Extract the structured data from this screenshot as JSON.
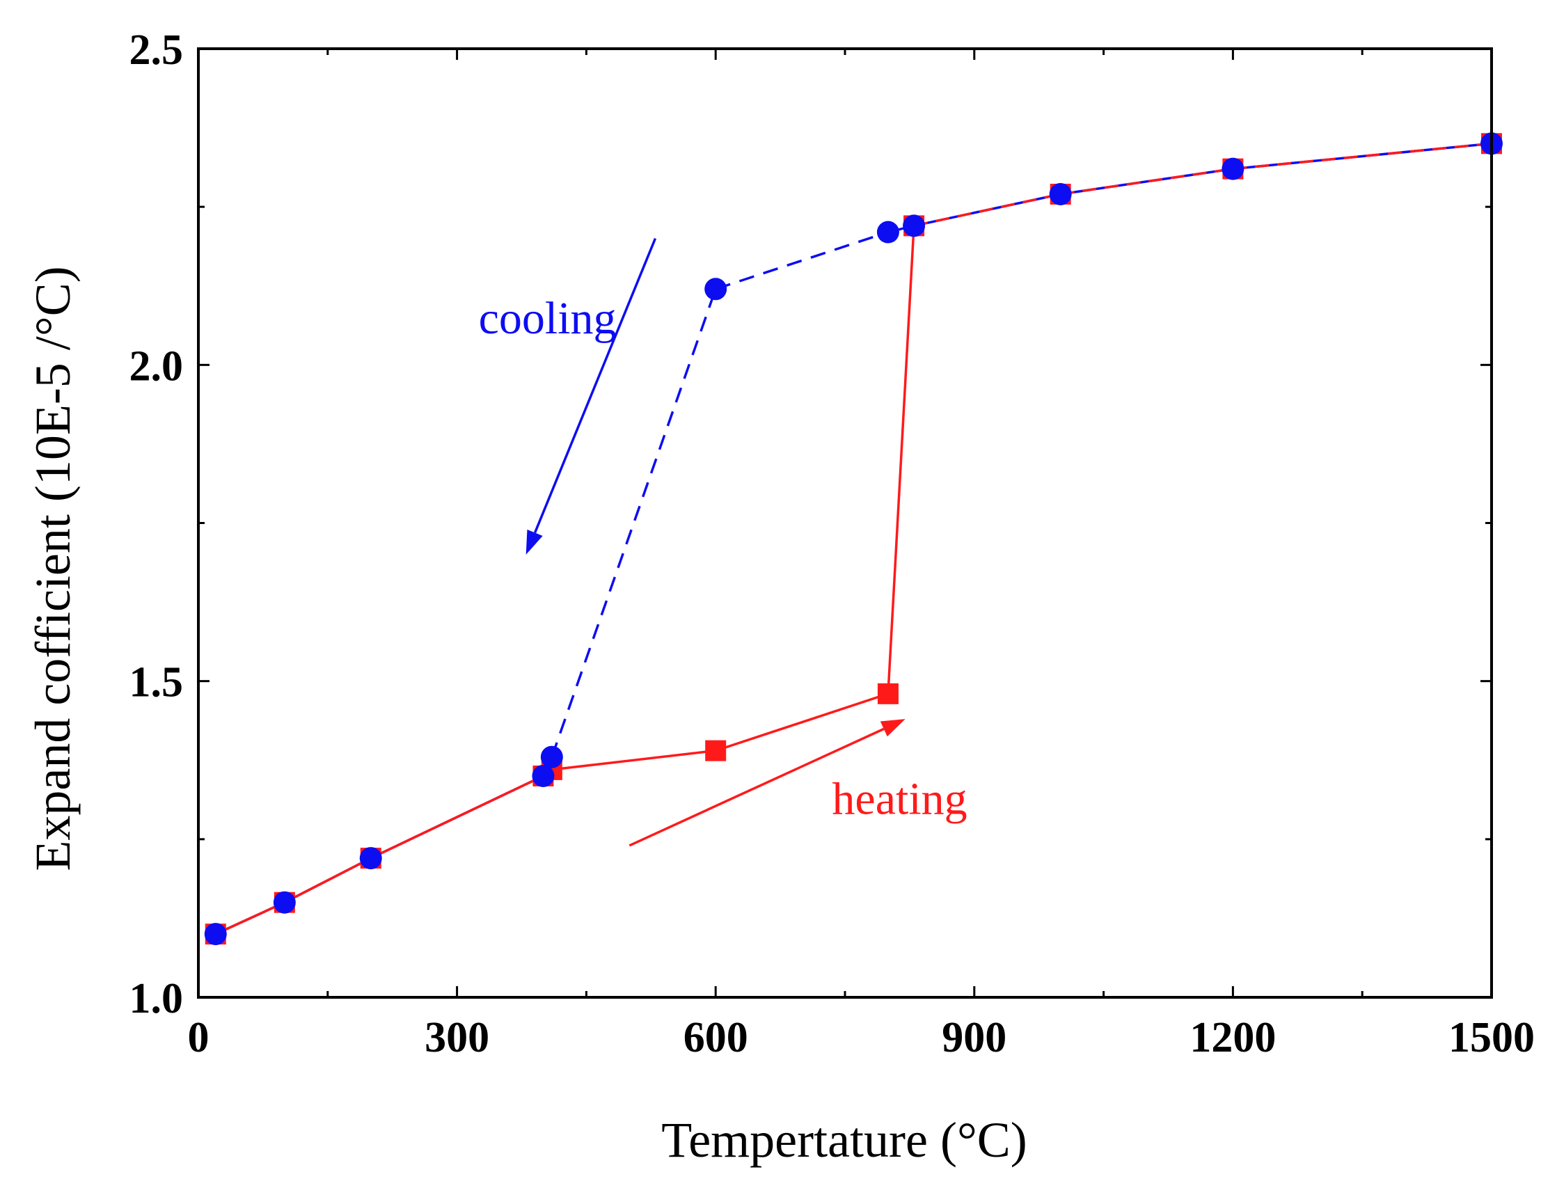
{
  "chart_data": {
    "type": "line",
    "title": "",
    "xlabel": "Tempertature (°C)",
    "ylabel": "Expand cofficient (10E-5 /°C)",
    "xlim": [
      0,
      1500
    ],
    "ylim": [
      1.0,
      2.5
    ],
    "xticks": [
      0,
      300,
      600,
      900,
      1200,
      1500
    ],
    "xtick_labels": [
      "0",
      "300",
      "600",
      "900",
      "1200",
      "1500"
    ],
    "x_minor_ticks": [
      150,
      450,
      750,
      1050,
      1350
    ],
    "yticks": [
      1.0,
      1.5,
      2.0,
      2.5
    ],
    "ytick_labels": [
      "1.0",
      "1.5",
      "2.0",
      "2.5"
    ],
    "y_minor_ticks": [
      1.25,
      1.75,
      2.25
    ],
    "grid": false,
    "series": [
      {
        "name": "heating",
        "color": "#ff1a1a",
        "marker": "square",
        "line_style": "solid",
        "x": [
          20,
          100,
          200,
          400,
          410,
          600,
          800,
          830,
          1000,
          1200,
          1500
        ],
        "y": [
          1.1,
          1.15,
          1.22,
          1.35,
          1.36,
          1.39,
          1.48,
          2.22,
          2.27,
          2.31,
          2.35
        ]
      },
      {
        "name": "cooling",
        "color": "#0d0df2",
        "marker": "circle",
        "x": [
          20,
          100,
          200,
          400,
          410,
          600,
          800,
          830,
          1000,
          1200,
          1500
        ],
        "y": [
          1.1,
          1.15,
          1.22,
          1.35,
          1.38,
          2.12,
          2.21,
          2.22,
          2.27,
          2.31,
          2.35
        ],
        "dashed_segments": [
          [
            410,
            600
          ],
          [
            600,
            800
          ]
        ]
      }
    ],
    "annotations": [
      {
        "text": "cooling",
        "color": "#0d0df2",
        "x": 325,
        "y": 2.05,
        "arrow": {
          "from": [
            530,
            2.2
          ],
          "to": [
            380,
            1.7
          ]
        }
      },
      {
        "text": "heating",
        "color": "#ff1a1a",
        "x": 735,
        "y": 1.29,
        "arrow": {
          "from": [
            500,
            1.24
          ],
          "to": [
            820,
            1.44
          ]
        }
      }
    ]
  }
}
